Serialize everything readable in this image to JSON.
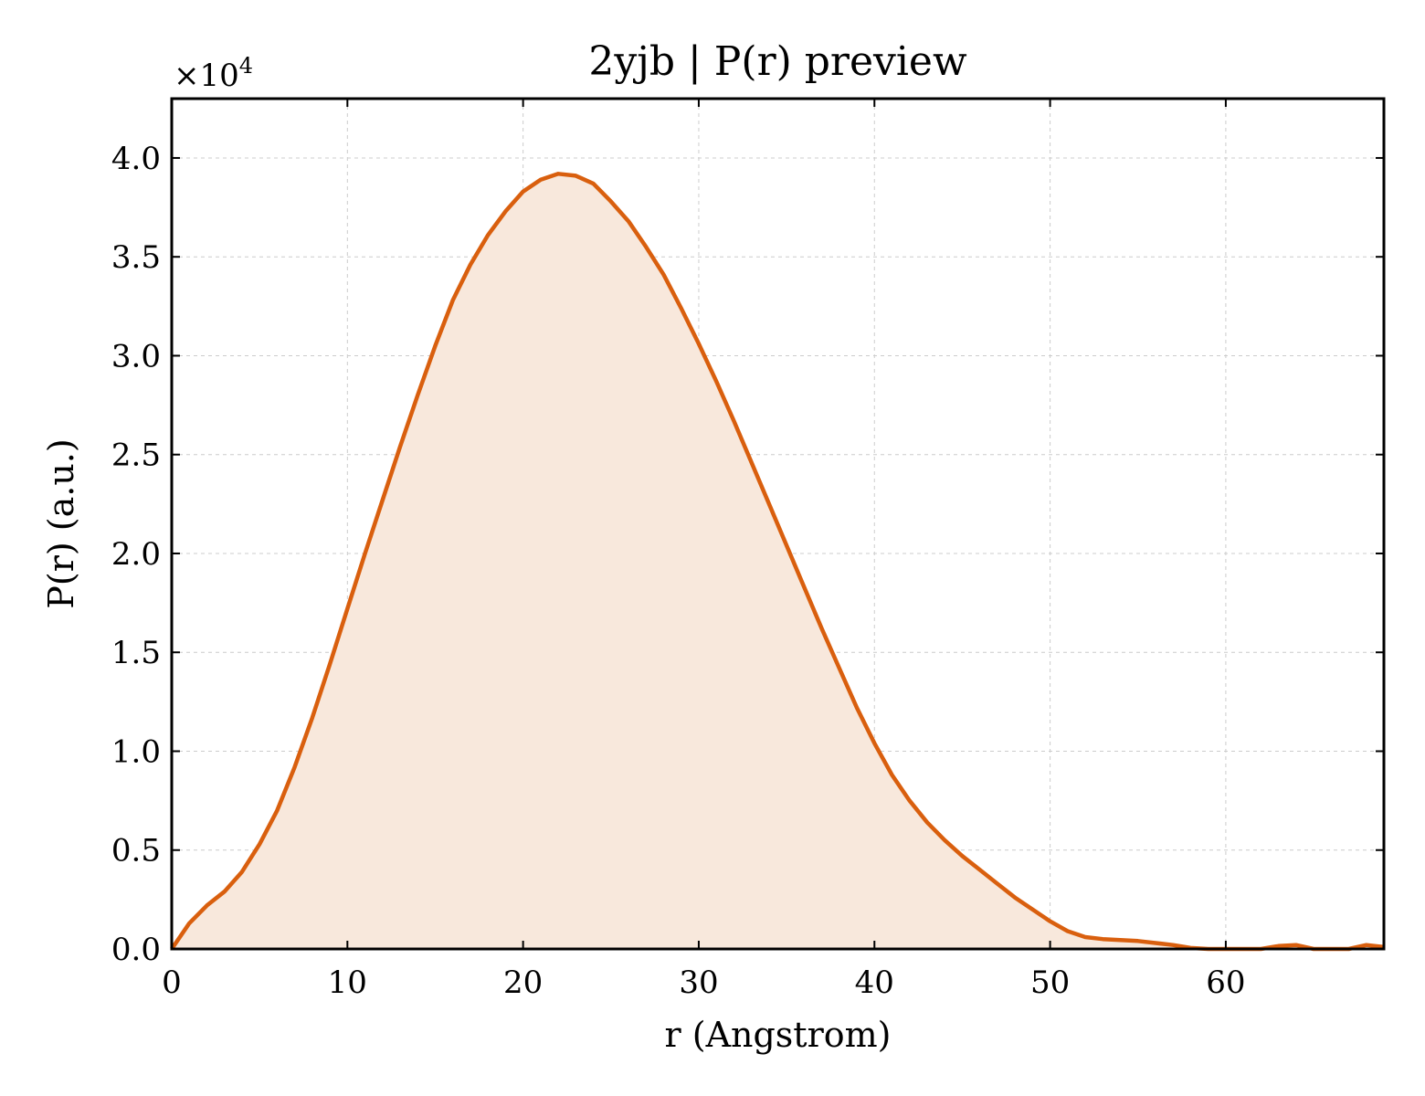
{
  "colors": {
    "line": "#d95f0e",
    "fill": "#f8e8dc"
  },
  "chart_data": {
    "type": "area",
    "title": "2yjb | P(r) preview",
    "xlabel": "r (Angstrom)",
    "ylabel": "P(r) (a.u.)",
    "y_multiplier": "×10",
    "y_multiplier_exp": "4",
    "xlim": [
      0,
      69
    ],
    "ylim": [
      0,
      4.3
    ],
    "grid": true,
    "x_ticks": [
      0,
      10,
      20,
      30,
      40,
      50,
      60
    ],
    "x_tick_labels": [
      "0",
      "10",
      "20",
      "30",
      "40",
      "50",
      "60"
    ],
    "y_ticks": [
      0,
      0.5,
      1.0,
      1.5,
      2.0,
      2.5,
      3.0,
      3.5,
      4.0
    ],
    "y_tick_labels": [
      "0.0",
      "0.5",
      "1.0",
      "1.5",
      "2.0",
      "2.5",
      "3.0",
      "3.5",
      "4.0"
    ],
    "series": [
      {
        "x": [
          0,
          1,
          2,
          3,
          4,
          5,
          6,
          7,
          8,
          9,
          10,
          11,
          12,
          13,
          14,
          15,
          16,
          17,
          18,
          19,
          20,
          21,
          22,
          23,
          24,
          25,
          26,
          27,
          28,
          29,
          30,
          31,
          32,
          33,
          34,
          35,
          36,
          37,
          38,
          39,
          40,
          41,
          42,
          43,
          44,
          45,
          46,
          47,
          48,
          49,
          50,
          51,
          52,
          53,
          54,
          55,
          56,
          57,
          58,
          59,
          60,
          61,
          62,
          63,
          64,
          65,
          66,
          67,
          68,
          69
        ],
        "y": [
          0.0,
          0.13,
          0.22,
          0.29,
          0.39,
          0.53,
          0.7,
          0.92,
          1.17,
          1.44,
          1.72,
          2.0,
          2.27,
          2.54,
          2.8,
          3.05,
          3.28,
          3.46,
          3.61,
          3.73,
          3.83,
          3.89,
          3.92,
          3.91,
          3.87,
          3.78,
          3.68,
          3.55,
          3.41,
          3.24,
          3.06,
          2.87,
          2.67,
          2.46,
          2.25,
          2.04,
          1.83,
          1.62,
          1.42,
          1.22,
          1.04,
          0.88,
          0.75,
          0.64,
          0.55,
          0.47,
          0.4,
          0.33,
          0.26,
          0.2,
          0.14,
          0.09,
          0.06,
          0.05,
          0.045,
          0.04,
          0.03,
          0.02,
          0.005,
          0.0,
          0.0,
          0.0,
          0.0,
          0.015,
          0.02,
          0.0,
          0.0,
          0.0,
          0.02,
          0.01
        ]
      }
    ]
  }
}
